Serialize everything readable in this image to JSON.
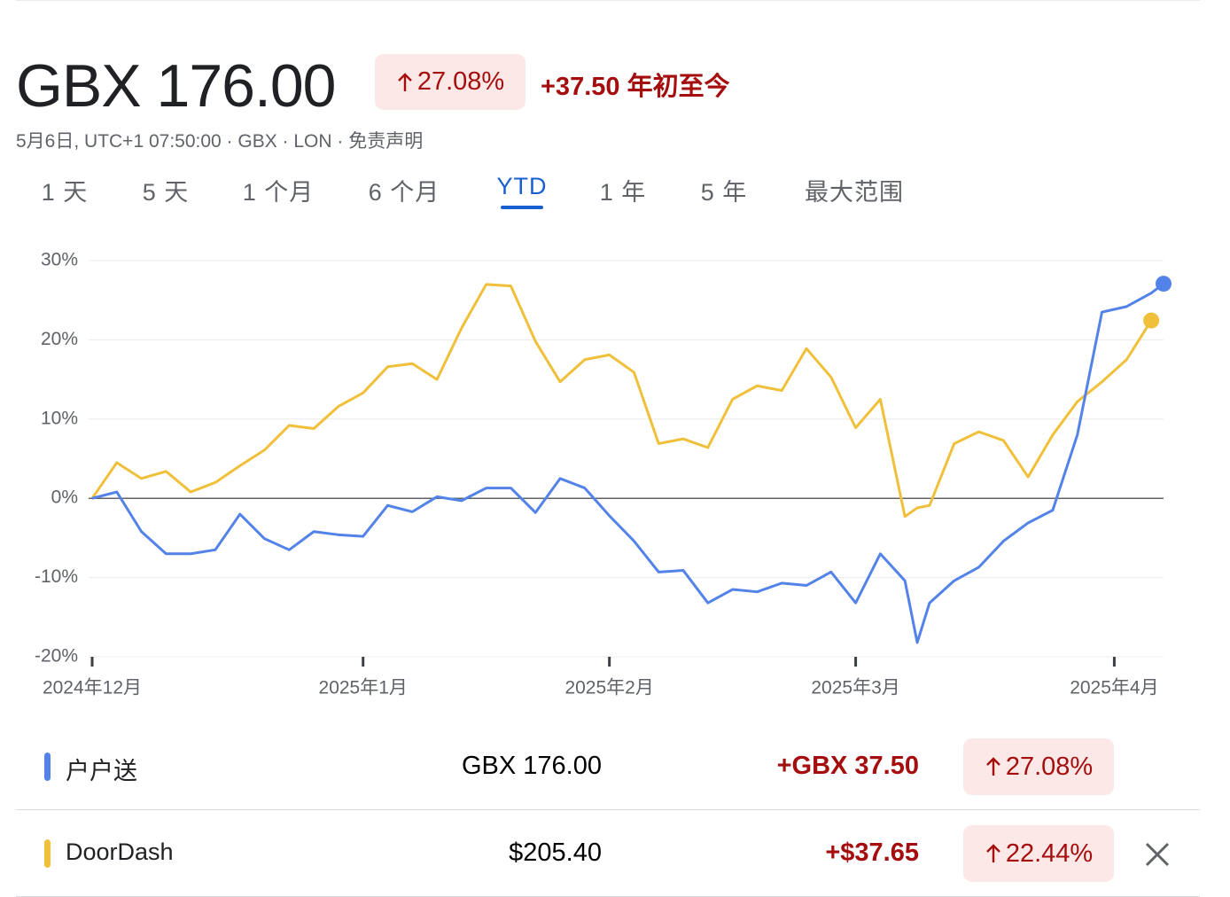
{
  "header": {
    "title": "GBX 176.00",
    "change_percent": "27.08%",
    "change": "+37.50",
    "period": "年初至今",
    "subtitle": "5月6日, UTC+1 07:50:00 · GBX · LON · 免责声明"
  },
  "tabs": {
    "items": [
      "1 天",
      "5 天",
      "1 个月",
      "6 个月",
      "YTD",
      "1 年",
      "5 年",
      "最大范围"
    ],
    "active": 4
  },
  "chart_data": {
    "type": "line",
    "x": [
      0,
      2,
      4,
      6,
      8,
      10,
      12,
      14,
      16,
      18,
      20,
      22,
      24,
      26,
      28,
      30,
      32,
      34,
      36,
      38,
      40,
      42,
      44,
      46,
      48,
      50,
      52,
      54,
      56,
      58,
      60,
      62,
      64,
      66,
      67,
      68,
      70,
      72,
      74,
      76,
      78,
      80,
      82,
      84,
      86,
      87
    ],
    "series": [
      {
        "name": "户户送",
        "color": "#5383e8",
        "values": [
          0,
          0.8,
          -4.2,
          -7.0,
          -7.0,
          -6.5,
          -2.0,
          -5.1,
          -6.5,
          -4.2,
          -4.6,
          -4.8,
          -0.9,
          -1.7,
          0.2,
          -0.3,
          1.3,
          1.3,
          -1.8,
          2.5,
          1.3,
          -2.2,
          -5.4,
          -9.3,
          -9.1,
          -13.2,
          -11.5,
          -11.8,
          -10.7,
          -11.0,
          -9.3,
          -13.2,
          -7.0,
          -10.4,
          -18.2,
          -13.2,
          -10.4,
          -8.7,
          -5.4,
          -3.1,
          -1.5,
          8.0,
          23.5,
          24.2,
          25.9,
          27.08
        ]
      },
      {
        "name": "DoorDash",
        "color": "#f0c03a",
        "values": [
          0,
          4.5,
          2.5,
          3.4,
          0.8,
          2.0,
          4.1,
          6.1,
          9.2,
          8.8,
          11.6,
          13.3,
          16.6,
          17.0,
          15.0,
          21.5,
          27.0,
          26.8,
          19.8,
          14.7,
          17.5,
          18.1,
          15.9,
          6.9,
          7.5,
          6.4,
          12.5,
          14.2,
          13.6,
          18.9,
          15.3,
          8.9,
          12.5,
          -2.3,
          -1.2,
          -0.9,
          6.9,
          8.4,
          7.3,
          2.7,
          8.0,
          12.2,
          14.7,
          17.5,
          22.44,
          null
        ]
      }
    ],
    "xlim": [
      0,
      87
    ],
    "xticks": [
      {
        "value": 0,
        "label": "2024年12月"
      },
      {
        "value": 22,
        "label": "2025年1月"
      },
      {
        "value": 42,
        "label": "2025年2月"
      },
      {
        "value": 62,
        "label": "2025年3月"
      },
      {
        "value": 83,
        "label": "2025年4月"
      }
    ],
    "ylim": [
      -20,
      30
    ],
    "yticks": [
      {
        "value": -20,
        "label": "-20%"
      },
      {
        "value": -10,
        "label": "-10%"
      },
      {
        "value": 0,
        "label": "0%"
      },
      {
        "value": 10,
        "label": "10%"
      },
      {
        "value": 20,
        "label": "20%"
      },
      {
        "value": 30,
        "label": "30%"
      }
    ],
    "grid": true
  },
  "table": {
    "rows": [
      {
        "price": "GBX 176.00",
        "change": "+GBX 37.50",
        "change_percent": "27.08%"
      },
      {
        "price": "$205.40",
        "change": "+$37.65",
        "change_percent": "22.44%"
      }
    ]
  }
}
